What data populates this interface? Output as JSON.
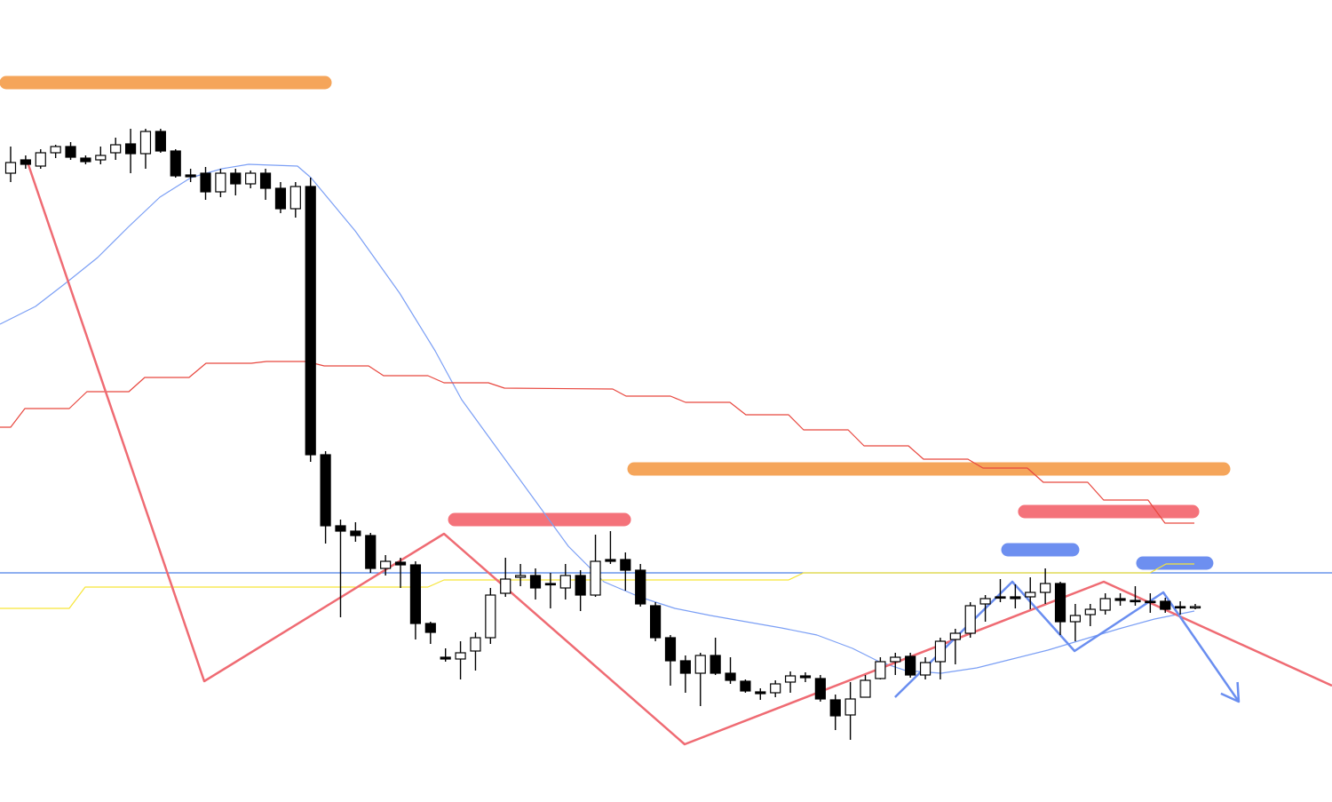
{
  "chart_data": {
    "type": "candlestick",
    "x": [
      0,
      1,
      2,
      3,
      4,
      5,
      6,
      7,
      8,
      9,
      10,
      11,
      12,
      13,
      14,
      15,
      16,
      17,
      18,
      19,
      20,
      21,
      22,
      23,
      24,
      25,
      26,
      27,
      28,
      29,
      30,
      31,
      32,
      33,
      34,
      35,
      36,
      37,
      38,
      39,
      40,
      41,
      42,
      43,
      44,
      45,
      46,
      47,
      48,
      49,
      50,
      51,
      52,
      53,
      54,
      55,
      56,
      57,
      58,
      59,
      60,
      61,
      62,
      63,
      64,
      65,
      66,
      67,
      68,
      69,
      70,
      71,
      72,
      73,
      74,
      75,
      76,
      77,
      78,
      79
    ],
    "open": [
      708,
      723,
      716,
      731,
      738,
      725,
      723,
      731,
      741,
      730,
      755,
      733,
      706,
      708,
      687,
      708,
      696,
      708,
      691,
      668,
      693,
      391,
      311,
      305,
      300,
      263,
      270,
      267,
      201,
      163,
      161,
      170,
      185,
      235,
      253,
      255,
      246,
      241,
      255,
      233,
      273,
      273,
      261,
      221,
      185,
      159,
      145,
      165,
      145,
      136,
      124,
      123,
      135,
      142,
      139,
      115,
      98,
      118,
      139,
      158,
      164,
      143,
      158,
      183,
      190,
      223,
      231,
      231,
      231,
      236,
      246,
      203,
      211,
      216,
      229,
      227,
      226,
      226,
      220,
      220
    ],
    "high": [
      738,
      728,
      735,
      740,
      743,
      728,
      738,
      748,
      758,
      758,
      758,
      735,
      713,
      715,
      713,
      713,
      711,
      713,
      698,
      698,
      703,
      395,
      318,
      315,
      303,
      278,
      275,
      271,
      203,
      173,
      181,
      191,
      241,
      275,
      268,
      263,
      258,
      268,
      261,
      301,
      305,
      281,
      268,
      225,
      188,
      165,
      168,
      185,
      163,
      138,
      128,
      137,
      147,
      146,
      143,
      121,
      135,
      143,
      163,
      168,
      168,
      163,
      185,
      195,
      225,
      233,
      251,
      245,
      253,
      263,
      248,
      223,
      223,
      235,
      235,
      243,
      235,
      230,
      226,
      223
    ],
    "low": [
      698,
      713,
      713,
      725,
      723,
      718,
      718,
      723,
      708,
      713,
      731,
      703,
      698,
      678,
      681,
      683,
      691,
      678,
      663,
      658,
      383,
      291,
      208,
      293,
      258,
      255,
      241,
      183,
      178,
      158,
      138,
      148,
      178,
      231,
      243,
      228,
      218,
      228,
      215,
      231,
      268,
      238,
      220,
      181,
      131,
      123,
      108,
      143,
      133,
      123,
      115,
      118,
      123,
      135,
      113,
      81,
      70,
      118,
      138,
      143,
      140,
      138,
      138,
      155,
      185,
      203,
      225,
      218,
      217,
      223,
      188,
      181,
      198,
      211,
      221,
      221,
      213,
      213,
      211,
      217
    ],
    "close": [
      720,
      718,
      731,
      738,
      726,
      721,
      728,
      740,
      730,
      755,
      733,
      705,
      704,
      687,
      708,
      696,
      708,
      691,
      668,
      693,
      391,
      311,
      305,
      300,
      263,
      271,
      267,
      201,
      191,
      161,
      168,
      185,
      233,
      251,
      255,
      241,
      245,
      255,
      233,
      271,
      271,
      261,
      223,
      185,
      159,
      145,
      165,
      145,
      137,
      125,
      122,
      133,
      142,
      140,
      116,
      97,
      116,
      137,
      158,
      163,
      143,
      157,
      181,
      190,
      221,
      229,
      230,
      229,
      236,
      246,
      203,
      210,
      217,
      229,
      227,
      226,
      225,
      217,
      219,
      220
    ],
    "up_color": "#ffffff",
    "down_color": "#000000",
    "xlim": [
      -0.71,
      88.12
    ],
    "ylim": [
      0,
      903
    ],
    "lines": [
      {
        "color": "#7b9ff5",
        "x": [
          -0.71,
          1.66,
          3.73,
          5.8,
          7.88,
          9.95,
          12.02,
          14.09,
          15.87,
          19.13,
          20.02,
          22.98,
          25.94,
          28.31,
          30.08,
          32.45,
          34.82,
          37.19,
          39.56,
          41.93,
          44.3,
          46.67,
          49.03,
          51.4,
          53.77,
          56.14,
          57.92,
          59.69,
          62.06,
          64.43,
          66.8,
          69.17,
          71.54,
          73.91,
          76.28,
          78.94
        ],
        "values": [
          538,
          558,
          585,
          613,
          648,
          681,
          703,
          713,
          718,
          716,
          703,
          643,
          573,
          508,
          453,
          398,
          343,
          288,
          248,
          231,
          218,
          210,
          203,
          196,
          188,
          173,
          158,
          148,
          145,
          151,
          161,
          171,
          183,
          195,
          206,
          215
        ]
      },
      {
        "color": "#e8473f",
        "x": [
          -0.71,
          0,
          0.95,
          3.91,
          5.09,
          7.88,
          8.94,
          11.9,
          13.03,
          16.05,
          17.06,
          19.72,
          20.91,
          23.87,
          24.87,
          27.83,
          28.9,
          31.86,
          32.93,
          40.15,
          41.04,
          44,
          45.01,
          47.97,
          49.03,
          51.88,
          52.88,
          55.85,
          56.91,
          59.87,
          60.88,
          63.84,
          64.84,
          67.8,
          68.87,
          71.83,
          72.89,
          75.85,
          76.98,
          78.94
        ],
        "values": [
          422,
          422,
          443,
          443,
          462,
          462,
          478,
          478,
          494,
          494,
          496,
          496,
          491,
          491,
          480,
          480,
          472,
          472,
          466,
          465,
          457,
          457,
          450,
          450,
          436,
          436,
          419,
          419,
          401,
          401,
          386,
          386,
          376,
          376,
          360,
          360,
          340,
          340,
          314,
          314
        ]
      },
      {
        "color": "#f7e538",
        "x": [
          -0.71,
          3.91,
          4.97,
          27.83,
          28.9,
          51.88,
          52.88,
          75.98,
          77.05,
          78.94
        ],
        "values": [
          218,
          218,
          242,
          242,
          250,
          250,
          258,
          258,
          268,
          268
        ]
      }
    ],
    "hlines": [
      {
        "value": 258,
        "color": "#4a7fe8"
      }
    ],
    "zones": [
      {
        "x": [
          -0.71,
          21.38
        ],
        "value": 810,
        "color": "#f5a55a"
      },
      {
        "x": [
          41.16,
          81.31
        ],
        "value": 375,
        "color": "#f5a55a"
      },
      {
        "x": [
          29.2,
          41.34
        ],
        "value": 318,
        "color": "#f4727a"
      },
      {
        "x": [
          67.21,
          79.24
        ],
        "value": 327,
        "color": "#f4727a"
      },
      {
        "x": [
          66.09,
          71.24
        ],
        "value": 284,
        "color": "#6d8ff0"
      },
      {
        "x": [
          75.09,
          80.18
        ],
        "value": 269,
        "color": "#6d8ff0"
      }
    ],
    "trends": [
      {
        "color": "#ef6b73",
        "arrow": false,
        "x": [
          1.07,
          12.91,
          28.9,
          44.95,
          72.9,
          88.12
        ],
        "values": [
          723,
          136,
          302,
          65,
          248,
          131
        ]
      },
      {
        "color": "#6a8ef0",
        "arrow": true,
        "x": [
          58.98,
          66.8,
          70.95,
          76.87,
          81.9
        ],
        "values": [
          118,
          248,
          170,
          236,
          113
        ]
      }
    ]
  }
}
